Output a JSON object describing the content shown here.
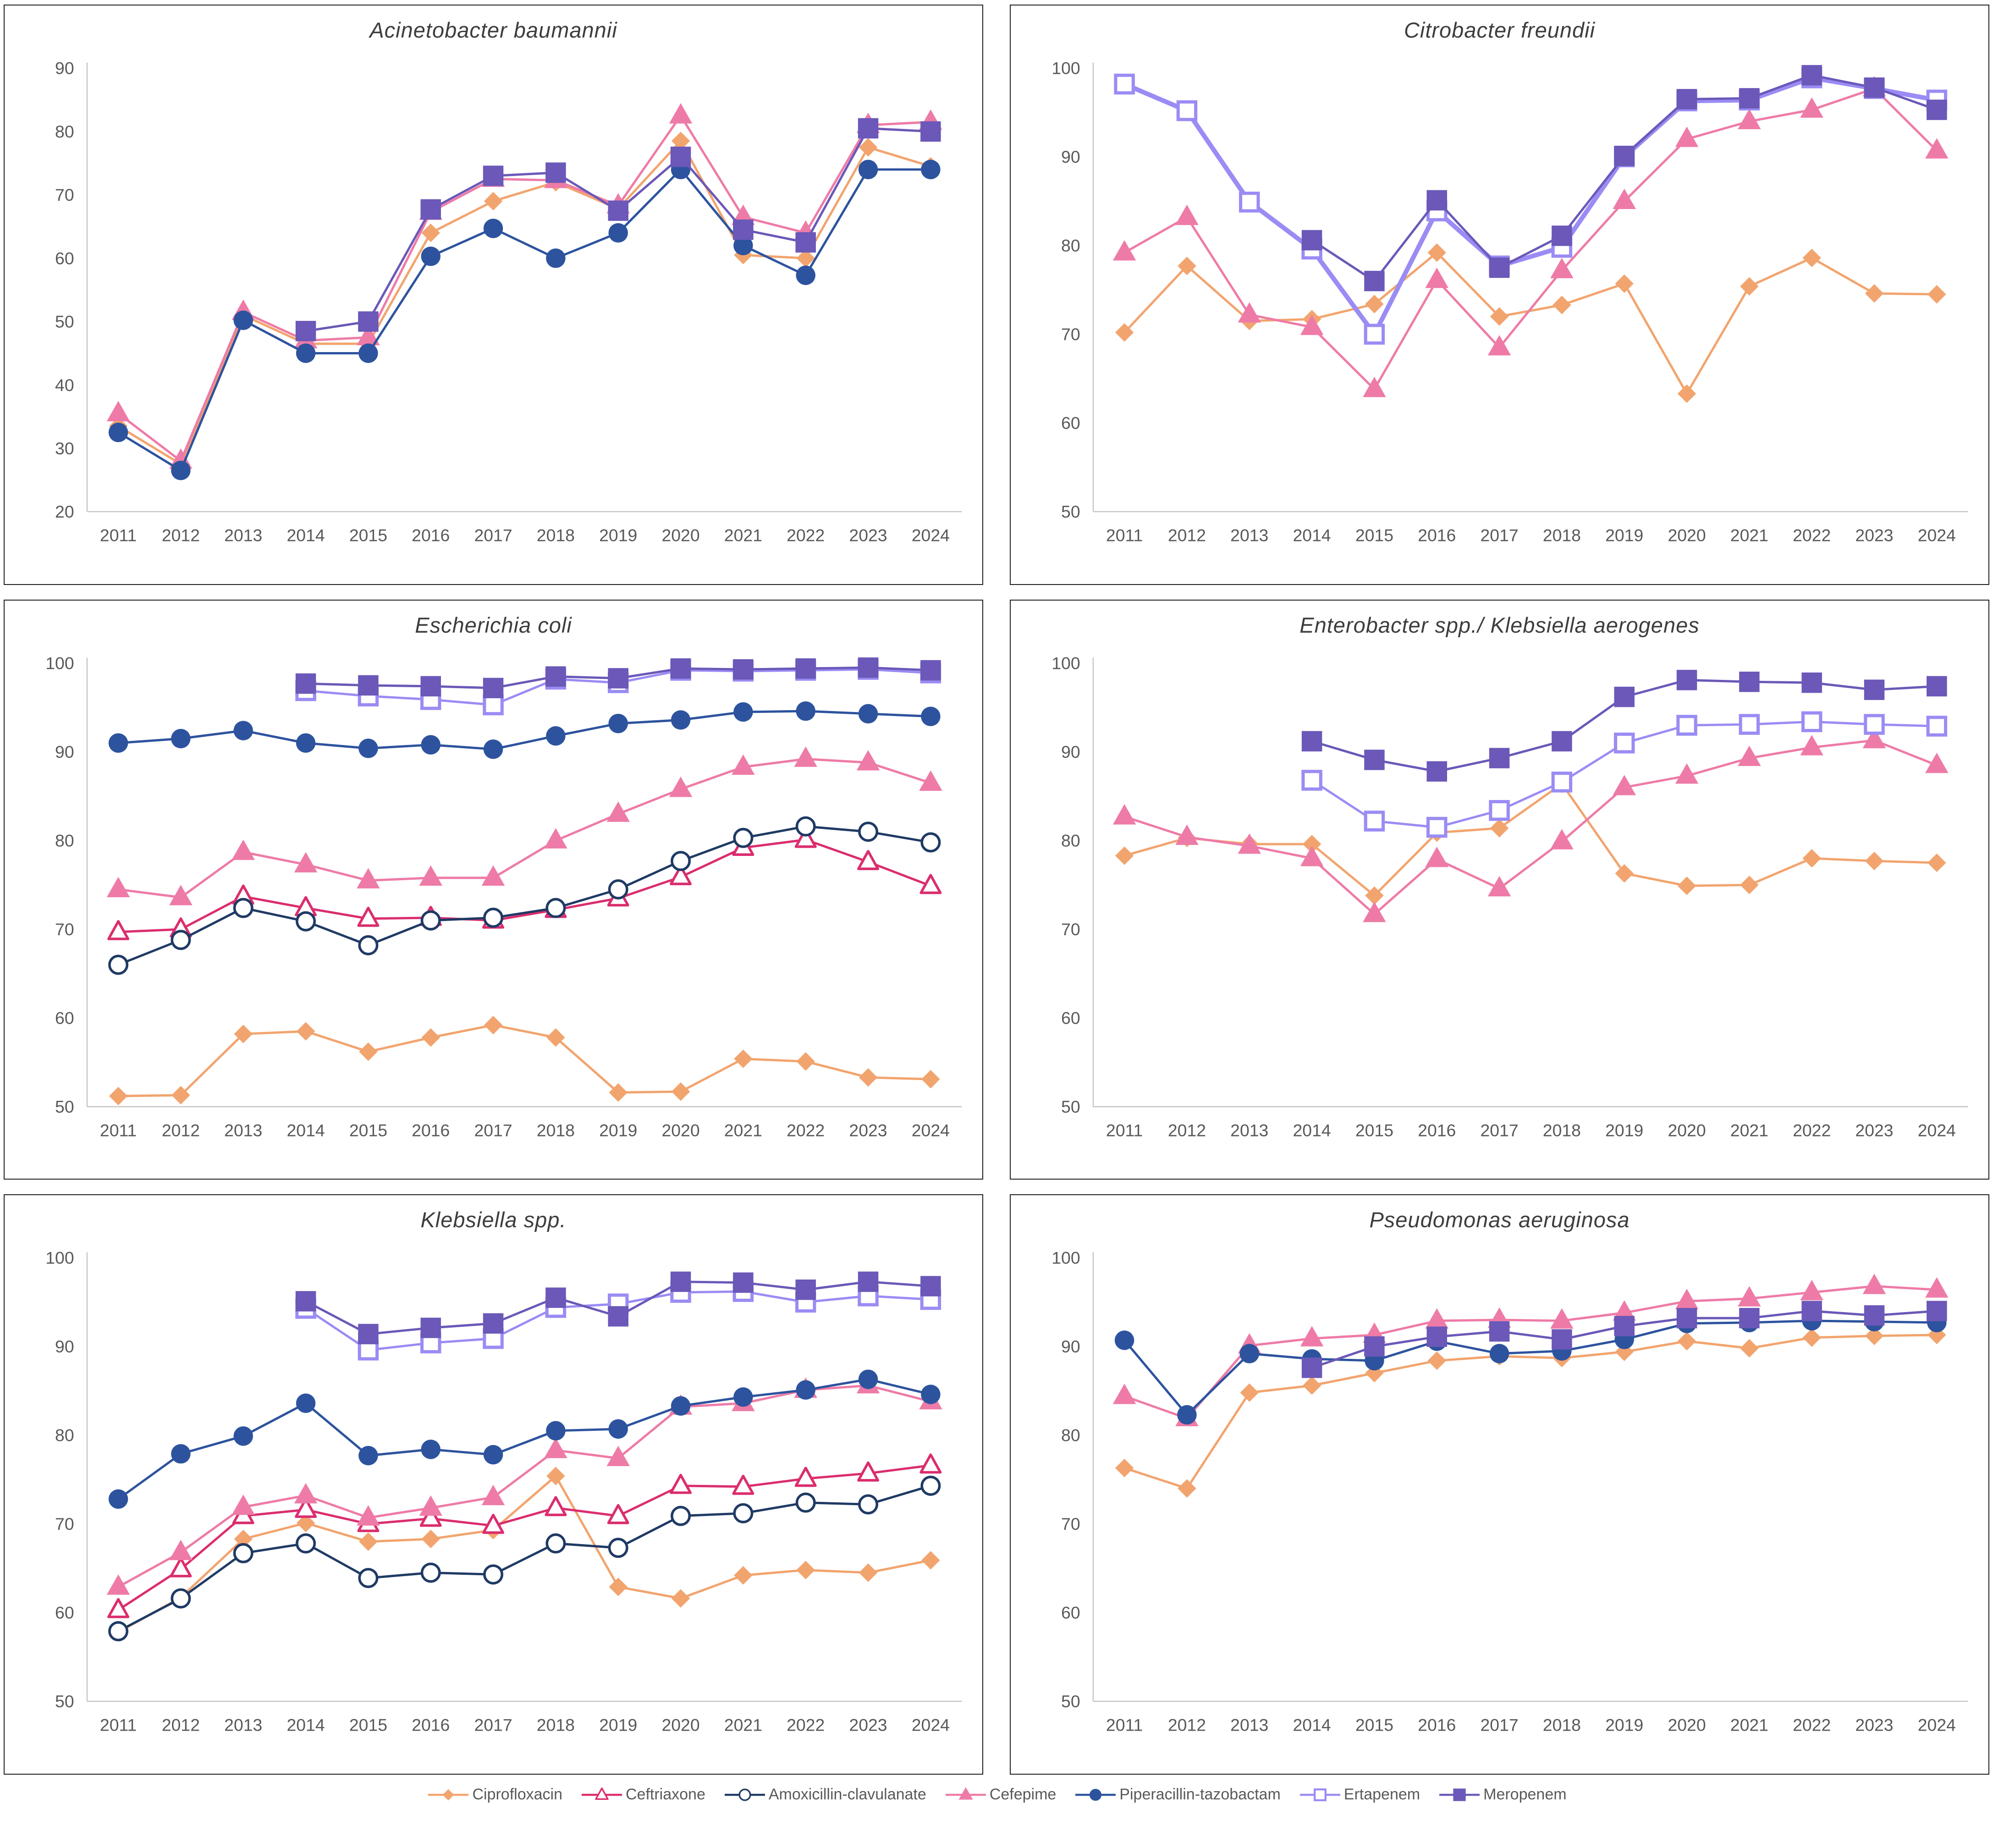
{
  "years": [
    2011,
    2012,
    2013,
    2014,
    2015,
    2016,
    2017,
    2018,
    2019,
    2020,
    2021,
    2022,
    2023,
    2024
  ],
  "legend": [
    {
      "label": "Ciprofloxacin",
      "color": "#F2A46E",
      "marker": "diamond-filled"
    },
    {
      "label": "Ceftriaxone",
      "color": "#DB2D6E",
      "marker": "triangle-open"
    },
    {
      "label": "Amoxicillin-clavulanate",
      "color": "#1F3A64",
      "marker": "circle-open"
    },
    {
      "label": "Cefepime",
      "color": "#EE7BA7",
      "marker": "triangle-filled"
    },
    {
      "label": "Piperacillin-tazobactam",
      "color": "#2D539E",
      "marker": "circle-filled"
    },
    {
      "label": "Ertapenem",
      "color": "#9A8CF4",
      "marker": "square-open"
    },
    {
      "label": "Meropenem",
      "color": "#6B58B8",
      "marker": "square-filled"
    }
  ],
  "chart_data": [
    {
      "type": "line",
      "title": "Acinetobacter baumannii",
      "ylim": [
        20,
        90
      ],
      "yticks": [
        20,
        30,
        40,
        50,
        60,
        70,
        80,
        90
      ],
      "legend_position": "bottom",
      "grid": false,
      "series": [
        {
          "name": "Ciprofloxacin",
          "values": [
            33.5,
            27.5,
            51,
            46.5,
            46.5,
            64,
            69,
            72,
            67.8,
            78.5,
            60.5,
            60,
            77.5,
            74.5
          ]
        },
        {
          "name": "Cefepime",
          "values": [
            35.5,
            28,
            51.5,
            47,
            47.5,
            67.3,
            72.5,
            72.3,
            68.3,
            82.5,
            66.5,
            64,
            81,
            81.5
          ]
        },
        {
          "name": "Piperacillin-tazobactam",
          "values": [
            32.5,
            26.5,
            50.2,
            45,
            45,
            60.3,
            64.7,
            60,
            64,
            74,
            62,
            57.3,
            74,
            74
          ]
        },
        {
          "name": "Meropenem",
          "values": [
            null,
            null,
            null,
            48.5,
            50,
            67.7,
            73,
            73.5,
            67.5,
            76,
            64.5,
            62.5,
            80.5,
            80
          ]
        }
      ]
    },
    {
      "type": "line",
      "title": "Citrobacter freundii",
      "ylim": [
        50,
        100
      ],
      "yticks": [
        50,
        60,
        70,
        80,
        90,
        100
      ],
      "legend_position": "bottom",
      "grid": false,
      "series": [
        {
          "name": "Ciprofloxacin",
          "values": [
            70.2,
            77.7,
            71.5,
            71.7,
            73.4,
            79.2,
            72,
            73.3,
            75.7,
            63.3,
            75.4,
            78.6,
            74.6,
            74.5
          ]
        },
        {
          "name": "Cefepime",
          "values": [
            79.2,
            83.2,
            72.2,
            70.8,
            63.8,
            76.1,
            68.5,
            77.2,
            85,
            92,
            94,
            95.3,
            97.7,
            90.7
          ]
        },
        {
          "name": "Ertapenem",
          "line_width": 10,
          "values": [
            98.2,
            95.2,
            84.9,
            79.6,
            70,
            83.9,
            77.7,
            79.8,
            90,
            96.3,
            96.4,
            98.9,
            97.7,
            96.4
          ]
        },
        {
          "name": "Meropenem",
          "values": [
            null,
            null,
            null,
            80.6,
            76,
            85.1,
            77.5,
            81.1,
            90.1,
            96.5,
            96.6,
            99.2,
            97.8,
            95.3
          ]
        }
      ]
    },
    {
      "type": "line",
      "title": "Escherichia coli",
      "ylim": [
        50,
        100
      ],
      "yticks": [
        50,
        60,
        70,
        80,
        90,
        100
      ],
      "legend_position": "bottom",
      "grid": false,
      "series": [
        {
          "name": "Ciprofloxacin",
          "values": [
            51.2,
            51.3,
            58.2,
            58.5,
            56.2,
            57.8,
            59.2,
            57.8,
            51.6,
            51.7,
            55.4,
            55.1,
            53.3,
            53.1
          ]
        },
        {
          "name": "Ceftriaxone",
          "values": [
            69.7,
            70,
            73.7,
            72.4,
            71.2,
            71.3,
            71,
            72.2,
            73.5,
            75.9,
            79.2,
            80.1,
            77.6,
            74.9
          ]
        },
        {
          "name": "Amoxicillin-clavulanate",
          "values": [
            66,
            68.8,
            72.4,
            70.9,
            68.2,
            71,
            71.3,
            72.4,
            74.5,
            77.7,
            80.3,
            81.6,
            81,
            79.8
          ]
        },
        {
          "name": "Cefepime",
          "values": [
            74.5,
            73.6,
            78.7,
            77.3,
            75.5,
            75.8,
            75.8,
            80,
            83,
            85.8,
            88.3,
            89.2,
            88.8,
            86.5
          ]
        },
        {
          "name": "Piperacillin-tazobactam",
          "values": [
            91,
            91.5,
            92.4,
            91,
            90.4,
            90.8,
            90.3,
            91.8,
            93.2,
            93.6,
            94.5,
            94.6,
            94.3,
            94
          ]
        },
        {
          "name": "Ertapenem",
          "values": [
            null,
            null,
            null,
            96.9,
            96.3,
            95.9,
            95.3,
            98.2,
            97.8,
            99.2,
            99.1,
            99.2,
            99.3,
            98.9
          ]
        },
        {
          "name": "Meropenem",
          "values": [
            null,
            null,
            null,
            97.7,
            97.5,
            97.4,
            97.2,
            98.5,
            98.3,
            99.4,
            99.3,
            99.4,
            99.5,
            99.2
          ]
        }
      ]
    },
    {
      "type": "line",
      "title": "Enterobacter spp./ Klebsiella aerogenes",
      "ylim": [
        50,
        100
      ],
      "yticks": [
        50,
        60,
        70,
        80,
        90,
        100
      ],
      "legend_position": "bottom",
      "grid": false,
      "series": [
        {
          "name": "Ciprofloxacin",
          "values": [
            78.3,
            80.3,
            79.6,
            79.6,
            73.8,
            80.9,
            81.4,
            86.4,
            76.3,
            74.9,
            75,
            78,
            77.7,
            77.5
          ]
        },
        {
          "name": "Cefepime",
          "values": [
            82.7,
            80.4,
            79.4,
            78,
            71.7,
            77.9,
            74.6,
            79.9,
            86,
            87.3,
            89.3,
            90.5,
            91.3,
            88.5
          ]
        },
        {
          "name": "Ertapenem",
          "values": [
            null,
            null,
            null,
            86.8,
            82.2,
            81.5,
            83.4,
            86.6,
            91,
            93,
            93.1,
            93.4,
            93.1,
            92.9
          ]
        },
        {
          "name": "Meropenem",
          "values": [
            null,
            null,
            null,
            91.2,
            89.1,
            87.8,
            89.3,
            91.2,
            96.2,
            98.1,
            97.9,
            97.8,
            97,
            97.4
          ]
        }
      ]
    },
    {
      "type": "line",
      "title": "Klebsiella spp.",
      "ylim": [
        50,
        100
      ],
      "yticks": [
        50,
        60,
        70,
        80,
        90,
        100
      ],
      "legend_position": "bottom",
      "grid": false,
      "series": [
        {
          "name": "Ciprofloxacin",
          "values": [
            57.8,
            61.7,
            68.3,
            70.1,
            68,
            68.3,
            69.3,
            75.4,
            62.9,
            61.6,
            64.2,
            64.8,
            64.5,
            65.9
          ]
        },
        {
          "name": "Ceftriaxone",
          "values": [
            60.3,
            64.9,
            70.9,
            71.6,
            70,
            70.6,
            69.8,
            71.8,
            70.9,
            74.3,
            74.2,
            75.1,
            75.7,
            76.6
          ]
        },
        {
          "name": "Amoxicillin-clavulanate",
          "values": [
            57.9,
            61.6,
            66.7,
            67.8,
            63.9,
            64.5,
            64.3,
            67.8,
            67.3,
            70.9,
            71.2,
            72.4,
            72.2,
            74.3
          ]
        },
        {
          "name": "Cefepime",
          "values": [
            62.9,
            66.8,
            71.9,
            73.2,
            70.7,
            71.8,
            73,
            78.3,
            77.4,
            83.2,
            83.6,
            85.1,
            85.6,
            83.8
          ]
        },
        {
          "name": "Piperacillin-tazobactam",
          "values": [
            72.8,
            77.9,
            79.9,
            83.6,
            77.7,
            78.4,
            77.8,
            80.5,
            80.7,
            83.3,
            84.3,
            85.1,
            86.3,
            84.6
          ]
        },
        {
          "name": "Ertapenem",
          "values": [
            null,
            null,
            null,
            94.3,
            89.6,
            90.4,
            90.9,
            94.4,
            94.8,
            96.1,
            96.2,
            95,
            95.7,
            95.3
          ]
        },
        {
          "name": "Meropenem",
          "values": [
            null,
            null,
            null,
            95.1,
            91.4,
            92.1,
            92.6,
            95.5,
            93.4,
            97.3,
            97.2,
            96.4,
            97.3,
            96.8
          ]
        }
      ]
    },
    {
      "type": "line",
      "title": "Pseudomonas aeruginosa",
      "ylim": [
        50,
        100
      ],
      "yticks": [
        50,
        60,
        70,
        80,
        90,
        100
      ],
      "legend_position": "bottom",
      "grid": false,
      "series": [
        {
          "name": "Ciprofloxacin",
          "values": [
            76.3,
            74,
            84.8,
            85.6,
            87,
            88.4,
            88.9,
            88.7,
            89.4,
            90.6,
            89.8,
            91,
            91.2,
            91.3
          ]
        },
        {
          "name": "Cefepime",
          "values": [
            84.4,
            81.9,
            90.1,
            90.9,
            91.3,
            92.9,
            93,
            92.9,
            93.8,
            95.1,
            95.4,
            96.1,
            96.8,
            96.4
          ]
        },
        {
          "name": "Piperacillin-tazobactam",
          "values": [
            90.7,
            82.3,
            89.2,
            88.6,
            88.4,
            90.6,
            89.2,
            89.5,
            90.8,
            92.6,
            92.7,
            92.9,
            92.8,
            92.7
          ]
        },
        {
          "name": "Meropenem",
          "values": [
            null,
            null,
            null,
            87.6,
            90,
            91.1,
            91.7,
            90.8,
            92.3,
            93.2,
            93.2,
            94,
            93.5,
            94
          ]
        }
      ]
    }
  ]
}
